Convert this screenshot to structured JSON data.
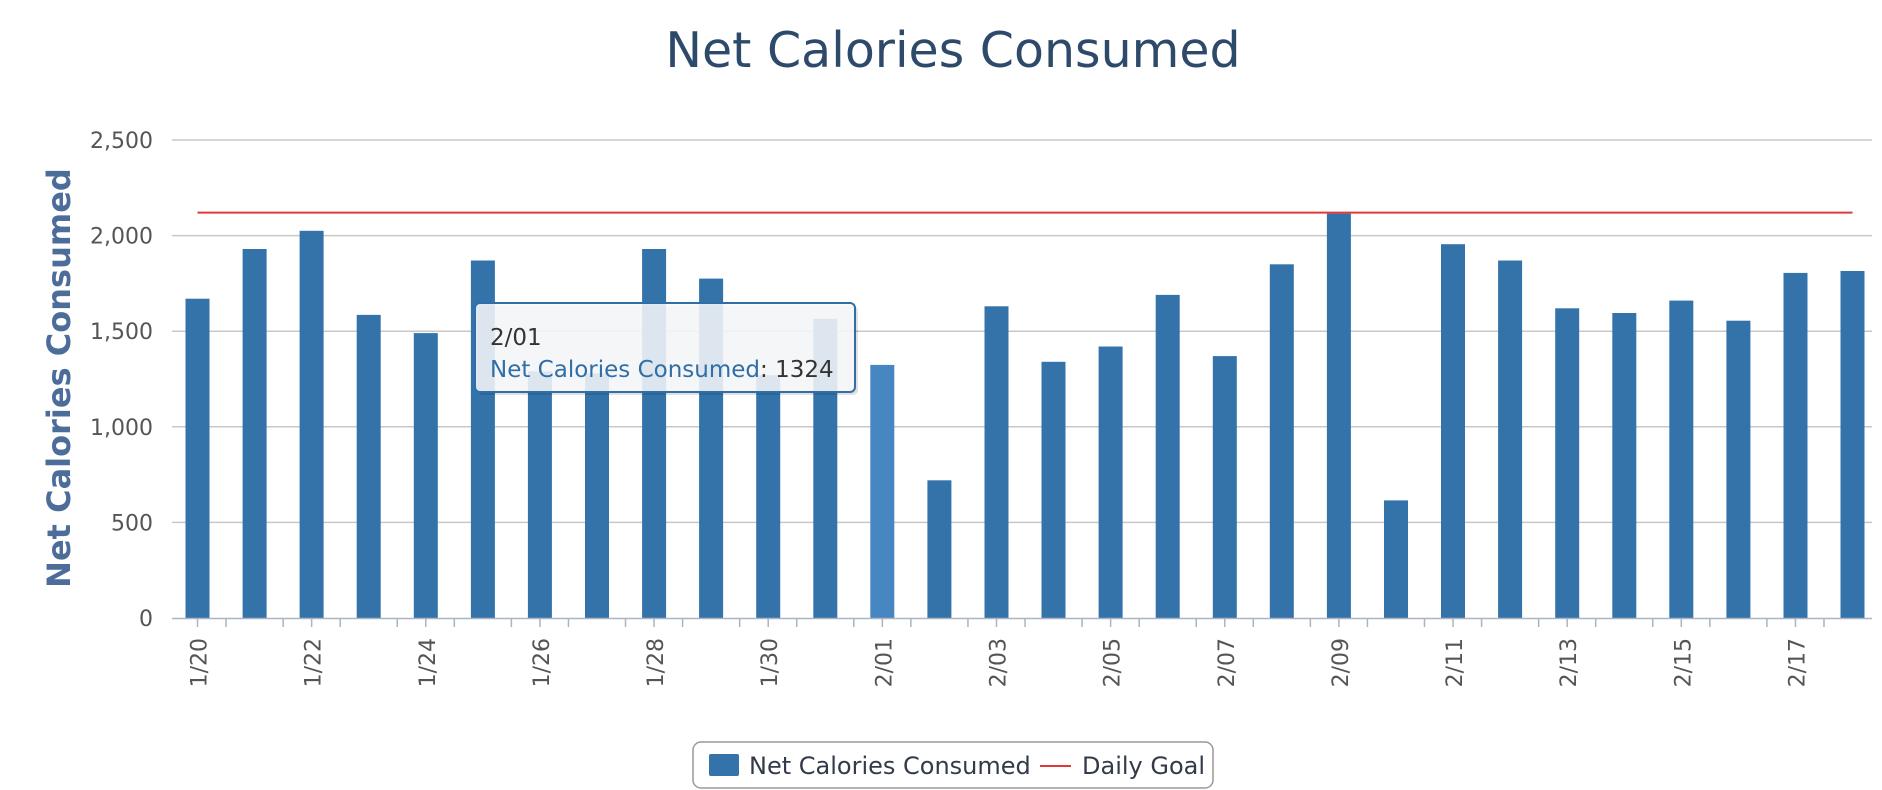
{
  "chart_data": {
    "type": "bar",
    "title": "Net Calories Consumed",
    "ylabel": "Net Calories Consumed",
    "xlabel": "",
    "ylim": [
      0,
      2500
    ],
    "y_ticks": [
      "0",
      "500",
      "1,000",
      "1,500",
      "2,000",
      "2,500"
    ],
    "y_tick_values": [
      0,
      500,
      1000,
      1500,
      2000,
      2500
    ],
    "grid": true,
    "categories": [
      "1/20",
      "1/21",
      "1/22",
      "1/23",
      "1/24",
      "1/25",
      "1/26",
      "1/27",
      "1/28",
      "1/29",
      "1/30",
      "1/31",
      "2/01",
      "2/02",
      "2/03",
      "2/04",
      "2/05",
      "2/06",
      "2/07",
      "2/08",
      "2/09",
      "2/10",
      "2/11",
      "2/12",
      "2/13",
      "2/14",
      "2/15",
      "2/16",
      "2/17",
      "2/18"
    ],
    "x_tick_labels": [
      "1/20",
      "1/22",
      "1/24",
      "1/26",
      "1/28",
      "1/30",
      "2/01",
      "2/03",
      "2/05",
      "2/07",
      "2/09",
      "2/11",
      "2/13",
      "2/15",
      "2/17"
    ],
    "series": [
      {
        "name": "Net Calories Consumed",
        "type": "bar",
        "color": "#3473aa",
        "highlight_color": "#4787c1",
        "values": [
          1670,
          1930,
          2025,
          1585,
          1490,
          1870,
          1290,
          1280,
          1930,
          1775,
          1270,
          1565,
          1324,
          720,
          1630,
          1340,
          1420,
          1690,
          1370,
          1850,
          2115,
          615,
          1955,
          1870,
          1620,
          1595,
          1660,
          1555,
          1805,
          1815
        ]
      },
      {
        "name": "Daily Goal",
        "type": "line",
        "color": "#e0393a",
        "value": 2120
      }
    ],
    "legend": {
      "position": "bottom-center",
      "items": [
        "Net Calories Consumed",
        "Daily Goal"
      ]
    },
    "tooltip": {
      "category": "2/01",
      "date_label": "2/01",
      "series_label": "Net Calories Consumed",
      "separator": ": ",
      "value": "1324",
      "series_color": "#2f6ea6"
    }
  }
}
